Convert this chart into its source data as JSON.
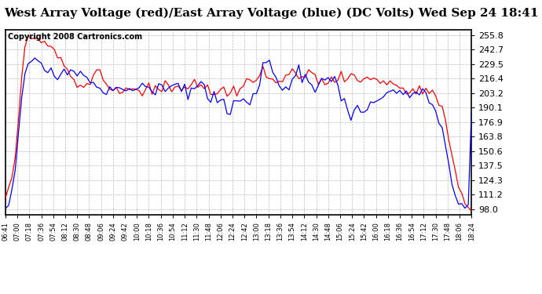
{
  "title": "West Array Voltage (red)/East Array Voltage (blue) (DC Volts) Wed Sep 24 18:41",
  "copyright": "Copyright 2008 Cartronics.com",
  "yticks": [
    98.0,
    111.2,
    124.3,
    137.5,
    150.6,
    163.8,
    176.9,
    190.1,
    203.2,
    216.4,
    229.5,
    242.7,
    255.8
  ],
  "ylim": [
    93.0,
    261.0
  ],
  "xlim": [
    0,
    143
  ],
  "xtick_labels": [
    "06:41",
    "07:00",
    "07:18",
    "07:36",
    "07:54",
    "08:12",
    "08:30",
    "08:48",
    "09:06",
    "09:24",
    "09:42",
    "10:00",
    "10:18",
    "10:36",
    "10:54",
    "11:12",
    "11:30",
    "11:48",
    "12:06",
    "12:24",
    "12:42",
    "13:00",
    "13:18",
    "13:36",
    "13:54",
    "14:12",
    "14:30",
    "14:48",
    "15:06",
    "15:24",
    "15:42",
    "16:00",
    "16:18",
    "16:36",
    "16:54",
    "17:12",
    "17:30",
    "17:48",
    "18:06",
    "18:24"
  ],
  "bg_color": "#ffffff",
  "grid_color": "#aaaaaa",
  "title_color": "#000000",
  "red_color": "#ff0000",
  "blue_color": "#0000ff",
  "title_fontsize": 11,
  "copyright_fontsize": 7,
  "ytick_fontsize": 8,
  "xtick_fontsize": 6
}
